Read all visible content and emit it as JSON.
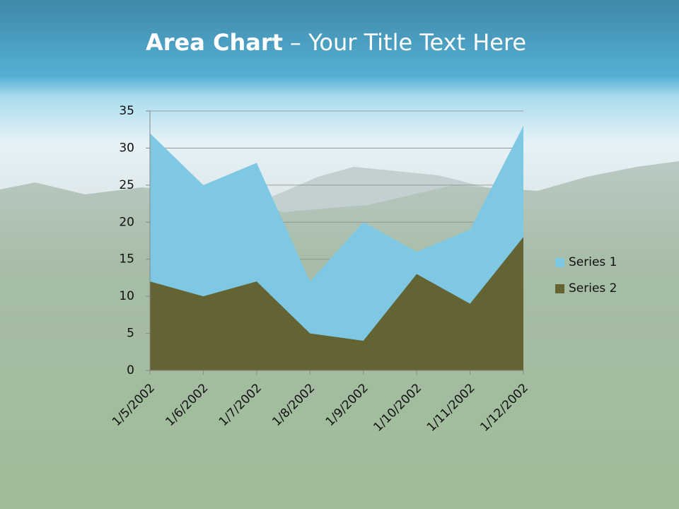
{
  "chart_data": {
    "type": "area",
    "title": "Area Chart",
    "title_rest": "– Your Title Text Here",
    "categories": [
      "1/5/2002",
      "1/6/2002",
      "1/7/2002",
      "1/8/2002",
      "1/9/2002",
      "1/10/2002",
      "1/11/2002",
      "1/12/2002"
    ],
    "series": [
      {
        "name": "Series 1",
        "color": "#7ec8e3",
        "values": [
          32,
          25,
          28,
          12,
          20,
          16,
          19,
          33
        ]
      },
      {
        "name": "Series 2",
        "color": "#636333",
        "values": [
          12,
          10,
          12,
          5,
          4,
          13,
          9,
          18
        ]
      }
    ],
    "ylim": [
      0,
      35
    ],
    "yticks": [
      0,
      5,
      10,
      15,
      20,
      25,
      30,
      35
    ],
    "grid": true,
    "legend": "right"
  }
}
